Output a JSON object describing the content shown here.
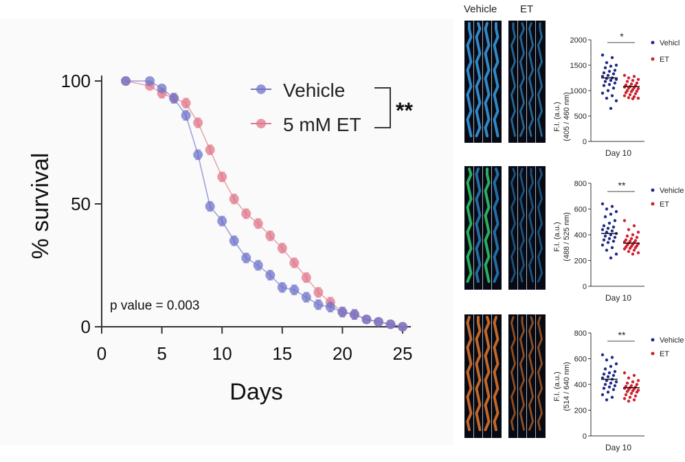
{
  "main_chart": {
    "ylabel": "% survival",
    "xlabel": "Days",
    "x_ticks": [
      "0",
      "5",
      "10",
      "15",
      "20",
      "25"
    ],
    "y_ticks": [
      "0",
      "50",
      "100"
    ],
    "p_value_text": "p value = 0.003",
    "significance": "**",
    "legend": [
      "Vehicle",
      "5 mM ET"
    ]
  },
  "images": {
    "header_vehicle": "Vehicle",
    "header_et": "ET"
  },
  "scatter_panels": [
    {
      "ylabel_line1": "F.I. (a.u.)",
      "ylabel_line2": "(405 / 460 nm)",
      "xlabel": "Day 10",
      "significance": "*",
      "legend": [
        "Vehicl",
        "ET"
      ],
      "ticks": [
        "0",
        "500",
        "1000",
        "1500",
        "2000"
      ]
    },
    {
      "ylabel_line1": "F.I. (a.u.)",
      "ylabel_line2": "(488 / 525 nm)",
      "xlabel": "Day 10",
      "significance": "**",
      "legend": [
        "Vehicle",
        "ET"
      ],
      "ticks": [
        "0",
        "200",
        "400",
        "600",
        "800"
      ]
    },
    {
      "ylabel_line1": "F.I. (a.u.)",
      "ylabel_line2": "(514 / 640 nm)",
      "xlabel": "Day 10",
      "significance": "**",
      "legend": [
        "Vehicle",
        "ET"
      ],
      "ticks": [
        "0",
        "200",
        "400",
        "600",
        "800"
      ]
    }
  ],
  "colors": {
    "vehicle": "#6f74c9",
    "et": "#e0778b",
    "scatter_vehicle": "#1f2a8a",
    "scatter_et": "#d0202e",
    "img1": "#3aa0e6",
    "img2a": "#2fd06a",
    "img2b": "#2a7fc0",
    "img3": "#e8782a"
  },
  "chart_data": [
    {
      "type": "line",
      "xlabel": "Days",
      "ylabel": "% survival",
      "xlim": [
        0,
        25
      ],
      "ylim": [
        0,
        100
      ],
      "x": [
        2,
        4,
        5,
        6,
        7,
        8,
        9,
        10,
        11,
        12,
        13,
        14,
        15,
        16,
        17,
        18,
        19,
        20,
        21,
        22,
        23,
        24,
        25
      ],
      "series": [
        {
          "name": "Vehicle",
          "values": [
            100,
            100,
            97,
            93,
            86,
            70,
            49,
            43,
            35,
            28,
            25,
            21,
            16,
            15,
            12,
            9,
            8,
            6,
            5,
            3,
            2,
            1,
            0
          ]
        },
        {
          "name": "5 mM ET",
          "values": [
            100,
            98,
            95,
            93,
            91,
            83,
            72,
            61,
            52,
            46,
            42,
            37,
            32,
            26,
            20,
            14,
            10,
            6,
            5,
            3,
            2,
            1,
            0
          ]
        }
      ],
      "annotations": [
        "p value = 0.003",
        "**"
      ]
    },
    {
      "type": "scatter",
      "ylabel": "F.I. (a.u.) (405 / 460 nm)",
      "ylim": [
        0,
        2000
      ],
      "categories": [
        "Day 10"
      ],
      "series": [
        {
          "name": "Vehicl",
          "mean": 1250,
          "values": [
            1700,
            1650,
            1550,
            1500,
            1480,
            1450,
            1400,
            1380,
            1350,
            1330,
            1300,
            1280,
            1250,
            1240,
            1220,
            1200,
            1180,
            1150,
            1120,
            1100,
            1050,
            1000,
            950,
            900,
            850,
            800,
            650
          ]
        },
        {
          "name": "ET",
          "mean": 1080,
          "values": [
            1300,
            1280,
            1250,
            1220,
            1200,
            1180,
            1150,
            1130,
            1110,
            1100,
            1080,
            1070,
            1060,
            1050,
            1040,
            1020,
            1000,
            990,
            980,
            960,
            940,
            920,
            900,
            880,
            860,
            850,
            840
          ]
        }
      ]
    },
    {
      "type": "scatter",
      "ylabel": "F.I. (a.u.) (488 / 525 nm)",
      "ylim": [
        0,
        800
      ],
      "categories": [
        "Day 10"
      ],
      "series": [
        {
          "name": "Vehicle",
          "mean": 410,
          "values": [
            640,
            620,
            600,
            580,
            560,
            540,
            510,
            490,
            470,
            460,
            450,
            440,
            430,
            420,
            410,
            400,
            390,
            380,
            370,
            360,
            350,
            340,
            320,
            300,
            280,
            250,
            220
          ]
        },
        {
          "name": "ET",
          "mean": 335,
          "values": [
            510,
            470,
            440,
            420,
            400,
            390,
            380,
            370,
            360,
            355,
            350,
            345,
            340,
            335,
            330,
            325,
            320,
            315,
            310,
            305,
            300,
            295,
            290,
            280,
            270,
            260,
            250
          ]
        }
      ]
    },
    {
      "type": "scatter",
      "ylabel": "F.I. (a.u.) (514 / 640 nm)",
      "ylim": [
        0,
        800
      ],
      "categories": [
        "Day 10"
      ],
      "series": [
        {
          "name": "Vehicle",
          "mean": 440,
          "values": [
            630,
            610,
            590,
            560,
            540,
            520,
            500,
            490,
            480,
            470,
            460,
            450,
            440,
            430,
            420,
            410,
            400,
            390,
            380,
            370,
            360,
            340,
            320,
            300,
            280
          ]
        },
        {
          "name": "ET",
          "mean": 375,
          "values": [
            490,
            470,
            450,
            430,
            420,
            410,
            400,
            390,
            385,
            380,
            375,
            370,
            365,
            360,
            355,
            350,
            345,
            340,
            330,
            320,
            310,
            300,
            290,
            280,
            270
          ]
        }
      ]
    }
  ]
}
